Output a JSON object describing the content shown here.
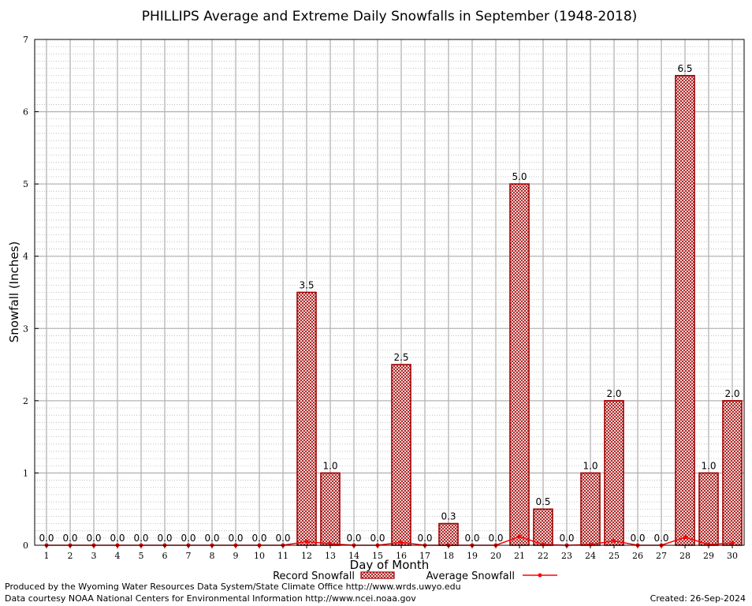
{
  "chart_data": {
    "type": "bar",
    "title": "PHILLIPS Average and Extreme Daily Snowfalls in September (1948-2018)",
    "xlabel": "Day of Month",
    "ylabel": "Snowfall (Inches)",
    "ylim": [
      0,
      7
    ],
    "yticks": [
      "0",
      "1",
      "2",
      "3",
      "4",
      "5",
      "6",
      "7"
    ],
    "categories": [
      "1",
      "2",
      "3",
      "4",
      "5",
      "6",
      "7",
      "8",
      "9",
      "10",
      "11",
      "12",
      "13",
      "14",
      "15",
      "16",
      "17",
      "18",
      "19",
      "20",
      "21",
      "22",
      "23",
      "24",
      "25",
      "26",
      "27",
      "28",
      "29",
      "30"
    ],
    "grid": true,
    "legend_placement": "bottom-center",
    "series": [
      {
        "name": "Record Snowfall",
        "kind": "bar",
        "color": "#a00000",
        "values": [
          0.0,
          0.0,
          0.0,
          0.0,
          0.0,
          0.0,
          0.0,
          0.0,
          0.0,
          0.0,
          0.0,
          3.5,
          1.0,
          0.0,
          0.0,
          2.5,
          0.0,
          0.3,
          0.0,
          0.0,
          5.0,
          0.5,
          0.0,
          1.0,
          2.0,
          0.0,
          0.0,
          6.5,
          1.0,
          2.0
        ],
        "labels": [
          "0.0",
          "0.0",
          "0.0",
          "0.0",
          "0.0",
          "0.0",
          "0.0",
          "0.0",
          "0.0",
          "0.0",
          "0.0",
          "3.5",
          "1.0",
          "0.0",
          "0.0",
          "2.5",
          "0.0",
          "0.3",
          "0.0",
          "0.0",
          "5.0",
          "0.5",
          "0.0",
          "1.0",
          "2.0",
          "0.0",
          "0.0",
          "6.5",
          "1.0",
          "2.0"
        ]
      },
      {
        "name": "Average Snowfall",
        "kind": "line",
        "color": "#ff0000",
        "values": [
          0,
          0,
          0,
          0,
          0,
          0,
          0,
          0,
          0,
          0,
          0,
          0.05,
          0.02,
          0,
          0,
          0.04,
          0,
          0,
          0,
          0,
          0.12,
          0.01,
          0,
          0.01,
          0.06,
          0,
          0,
          0.11,
          0.01,
          0.03
        ]
      }
    ]
  },
  "footer": {
    "line1": "Produced by the Wyoming Water Resources Data System/State Climate Office http://www.wrds.uwyo.edu",
    "line2": "Data courtesy NOAA National Centers for Environmental Information http://www.ncei.noaa.gov",
    "created": "Created:  26-Sep-2024"
  }
}
